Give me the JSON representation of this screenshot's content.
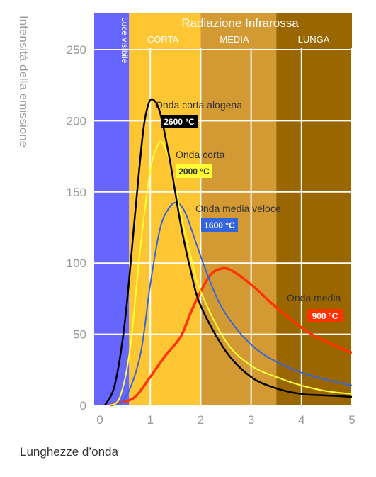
{
  "chart_data": {
    "type": "line",
    "title": "",
    "xlabel": "Lunghezze d’onda",
    "ylabel": "Intensità della emissione",
    "xlim": [
      0,
      5
    ],
    "ylim": [
      0,
      275
    ],
    "x_ticks": [
      "0",
      "1",
      "2",
      "3",
      "4",
      "5"
    ],
    "y_ticks": [
      "0",
      "50",
      "100",
      "150",
      "200",
      "250"
    ],
    "grid": true,
    "bands": [
      {
        "name": "Luce visibile",
        "from": 0,
        "to": 0.58,
        "color": "#6666ff"
      },
      {
        "name": "CORTA",
        "from": 0.58,
        "to": 2.0,
        "color": "#ffc633"
      },
      {
        "name": "MEDIA",
        "from": 2.0,
        "to": 3.5,
        "color": "#d39a33"
      },
      {
        "name": "LUNGA",
        "from": 3.5,
        "to": 5.0,
        "color": "#9a6600"
      }
    ],
    "band_group_title": "Radiazione Infrarossa",
    "series": [
      {
        "name": "Onda corta alogena",
        "temperature": "2600 °C",
        "color": "#000000",
        "x": [
          0.1,
          0.3,
          0.5,
          0.7,
          0.85,
          0.95,
          1.05,
          1.2,
          1.4,
          1.6,
          1.8,
          2.0,
          2.5,
          3.0,
          3.5,
          4.0,
          4.5,
          5.0
        ],
        "y": [
          0,
          15,
          60,
          135,
          190,
          210,
          215,
          205,
          170,
          128,
          95,
          70,
          38,
          20,
          12,
          8,
          7,
          6
        ]
      },
      {
        "name": "Onda corta",
        "temperature": "2000 °C",
        "color": "#ffff33",
        "x": [
          0.2,
          0.4,
          0.6,
          0.8,
          1.0,
          1.15,
          1.25,
          1.4,
          1.6,
          1.8,
          2.0,
          2.5,
          3.0,
          3.5,
          4.0,
          4.5,
          5.0
        ],
        "y": [
          0,
          6,
          40,
          110,
          165,
          183,
          184,
          170,
          135,
          105,
          80,
          45,
          28,
          20,
          14,
          10,
          8
        ]
      },
      {
        "name": "Onda media veloce",
        "temperature": "1600 °C",
        "color": "#3366dd",
        "x": [
          0.2,
          0.5,
          0.8,
          1.0,
          1.2,
          1.4,
          1.55,
          1.7,
          1.9,
          2.1,
          2.4,
          2.8,
          3.2,
          3.6,
          4.0,
          4.5,
          5.0
        ],
        "y": [
          0,
          5,
          35,
          85,
          125,
          140,
          142,
          135,
          115,
          95,
          70,
          50,
          37,
          29,
          23,
          18,
          14
        ]
      },
      {
        "name": "Onda media",
        "temperature": "900 °C",
        "color": "#ff3300",
        "x": [
          0.2,
          0.4,
          0.7,
          1.0,
          1.3,
          1.6,
          1.8,
          2.0,
          2.2,
          2.4,
          2.6,
          3.0,
          3.4,
          3.8,
          4.2,
          4.6,
          5.0
        ],
        "y": [
          0,
          2,
          6,
          20,
          35,
          48,
          65,
          80,
          92,
          96,
          95,
          85,
          72,
          60,
          50,
          43,
          37
        ]
      }
    ]
  }
}
